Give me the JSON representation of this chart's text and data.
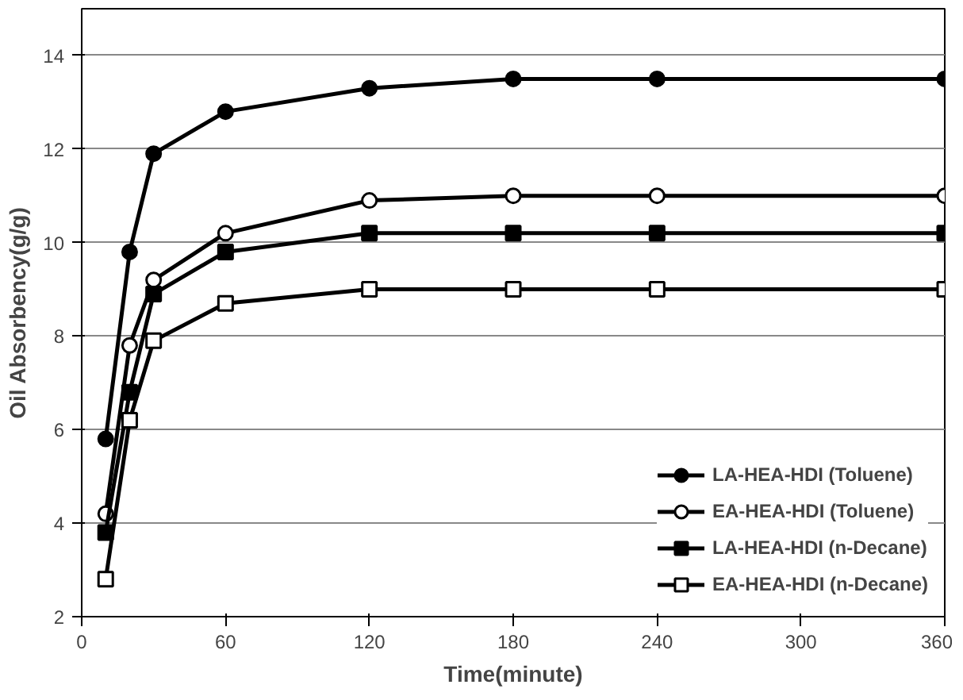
{
  "chart_data": {
    "type": "line",
    "xlabel": "Time(minute)",
    "ylabel": "Oil Absorbency(g/g)",
    "x": [
      10,
      20,
      30,
      60,
      120,
      180,
      240,
      360
    ],
    "xlim": [
      0,
      360
    ],
    "xticks": [
      0,
      60,
      120,
      180,
      240,
      300,
      360
    ],
    "ylim": [
      2,
      15
    ],
    "yticks": [
      2,
      4,
      6,
      8,
      10,
      12,
      14
    ],
    "grid": "y",
    "legend": "bottom right",
    "line_style": "solid",
    "series": [
      {
        "name": "LA-HEA-HDI (Toluene)",
        "color": "#000000",
        "marker": "circle",
        "values": [
          5.8,
          9.8,
          11.9,
          12.8,
          13.3,
          13.5,
          13.5,
          13.5
        ]
      },
      {
        "name": "EA-HEA-HDI (Toluene)",
        "color": "#000000",
        "marker": "circle_open",
        "values": [
          4.2,
          7.8,
          9.2,
          10.2,
          10.9,
          11.0,
          11.0,
          11.0
        ]
      },
      {
        "name": "LA-HEA-HDI (n-Decane)",
        "color": "#000000",
        "marker": "square",
        "values": [
          3.8,
          6.8,
          8.9,
          9.8,
          10.2,
          10.2,
          10.2,
          10.2
        ]
      },
      {
        "name": "EA-HEA-HDI (n-Decane)",
        "color": "#000000",
        "marker": "square_open",
        "values": [
          2.8,
          6.2,
          7.9,
          8.7,
          9.0,
          9.0,
          9.0,
          9.0
        ]
      }
    ]
  }
}
